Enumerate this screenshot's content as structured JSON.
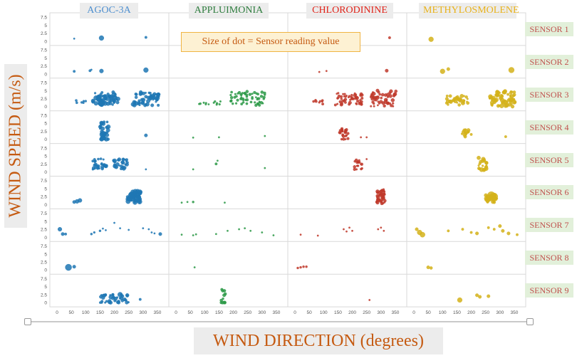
{
  "chart_data": {
    "type": "scatter",
    "xlabel": "WIND DIRECTION (degrees)",
    "ylabel": "WIND SPEED (m/s)",
    "annotation": "Size of dot = Sensor reading value",
    "x_ticks": [
      "0",
      "50",
      "100",
      "150",
      "200",
      "250",
      "300",
      "350"
    ],
    "y_ticks": [
      "0",
      "2.5",
      "5",
      "7.5"
    ],
    "xlim": [
      0,
      370
    ],
    "ylim": [
      0,
      8
    ],
    "chemicals": [
      {
        "name": "AGOC-3A",
        "color": "#1f77b4",
        "label_color": "#4f8fcf"
      },
      {
        "name": "APPLUIMONIA",
        "color": "#2e9a49",
        "label_color": "#2f7d3f"
      },
      {
        "name": "CHLORODININE",
        "color": "#c0392b",
        "label_color": "#e0251b"
      },
      {
        "name": "METHYLOSMOLENE",
        "color": "#d4b21a",
        "label_color": "#e8b21c"
      }
    ],
    "sensors": [
      "SENSOR 1",
      "SENSOR 2",
      "SENSOR 3",
      "SENSOR 4",
      "SENSOR 5",
      "SENSOR 6",
      "SENSOR 7",
      "SENSOR 8",
      "SENSOR 9"
    ],
    "points": [
      [
        [
          [
            60,
            0.8,
            1
          ],
          [
            155,
            1.0,
            3
          ],
          [
            310,
            1.2,
            1.5
          ]
        ],
        [
          [],
          [],
          [],
          []
        ]
      ],
      [
        [
          [
            60,
            0.8,
            1.5
          ],
          [
            115,
            1.0,
            1.5
          ],
          [
            155,
            0.9,
            2.5
          ],
          [
            310,
            1.2,
            3
          ]
        ],
        [],
        [
          [
            85,
            0.6,
            1
          ],
          [
            110,
            0.9,
            1
          ],
          [
            320,
            1.0,
            2
          ]
        ],
        [
          [
            100,
            0.8,
            3
          ],
          [
            120,
            1.5,
            2
          ],
          [
            340,
            1.2,
            3.5
          ]
        ]
      ],
      [],
      [],
      [],
      [],
      [],
      [],
      []
    ]
  }
}
